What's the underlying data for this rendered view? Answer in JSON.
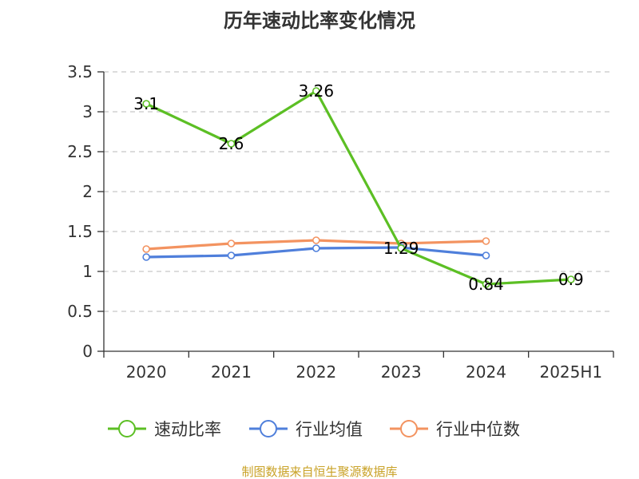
{
  "chart_data": {
    "type": "line",
    "title": "历年速动比率变化情况",
    "categories": [
      "2020",
      "2021",
      "2022",
      "2023",
      "2024",
      "2025H1"
    ],
    "ylim": [
      0,
      3.5
    ],
    "yticks": [
      "0",
      "0.5",
      "1",
      "1.5",
      "2",
      "2.5",
      "3",
      "3.5"
    ],
    "ytick_values": [
      0,
      0.5,
      1,
      1.5,
      2,
      2.5,
      3,
      3.5
    ],
    "grid": true,
    "legend_position": "bottom",
    "series": [
      {
        "name": "速动比率",
        "color": "#5cbf24",
        "values": [
          3.1,
          2.6,
          3.26,
          1.29,
          0.84,
          0.9
        ],
        "labels": [
          "3.1",
          "2.6",
          "3.26",
          "1.29",
          "0.84",
          "0.9"
        ]
      },
      {
        "name": "行业均值",
        "color": "#4f7fdb",
        "values": [
          1.18,
          1.2,
          1.29,
          1.3,
          1.2,
          null
        ]
      },
      {
        "name": "行业中位数",
        "color": "#f39360",
        "values": [
          1.28,
          1.35,
          1.39,
          1.35,
          1.38,
          null
        ]
      }
    ],
    "source": "制图数据来自恒生聚源数据库"
  }
}
